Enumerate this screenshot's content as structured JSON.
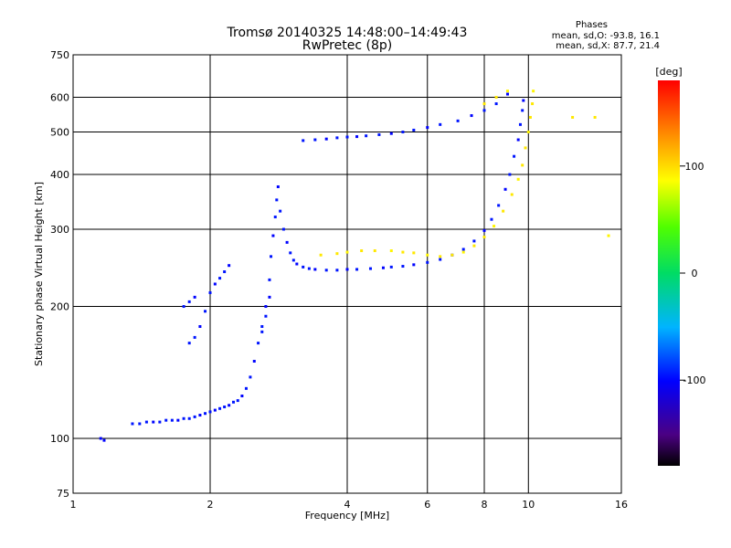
{
  "chart_data": {
    "type": "scatter",
    "title": "Tromsø 20140325 14:48:00–14:49:43",
    "subtitle": "RwPretec (8p)",
    "xlabel": "Frequency [MHz]",
    "ylabel": "Stationary phase Virtual Height [km]",
    "x_scale": "log2",
    "y_scale": "log",
    "xlim": [
      1,
      16
    ],
    "ylim": [
      75,
      750
    ],
    "x_ticks": [
      "1",
      "2",
      "4",
      "6",
      "8",
      "10",
      "16"
    ],
    "x_tick_values": [
      1,
      2,
      4,
      6,
      8,
      10,
      16
    ],
    "y_ticks": [
      "75",
      "100",
      "200",
      "300",
      "400",
      "500",
      "600",
      "750"
    ],
    "y_tick_values": [
      75,
      100,
      200,
      300,
      400,
      500,
      600,
      750
    ],
    "grid": true,
    "phase_stats": {
      "heading": "Phases",
      "o_line": "mean, sd,O: -93.8, 16.1",
      "x_line": "mean, sd,X:  87.7, 21.4"
    },
    "colorbar": {
      "label": "[deg]",
      "range": [
        -180,
        180
      ],
      "ticks": [
        "100",
        "0",
        "-100"
      ],
      "tick_values": [
        100,
        0,
        -100
      ],
      "colormap": "rainbow"
    },
    "series": [
      {
        "points": [
          [
            1.15,
            100,
            -100
          ],
          [
            1.17,
            99,
            -100
          ],
          [
            1.35,
            108,
            -95
          ],
          [
            1.4,
            108,
            -95
          ],
          [
            1.45,
            109,
            -95
          ],
          [
            1.5,
            109,
            -100
          ],
          [
            1.55,
            109,
            -95
          ],
          [
            1.6,
            110,
            -95
          ],
          [
            1.65,
            110,
            -95
          ],
          [
            1.7,
            110,
            -100
          ],
          [
            1.75,
            111,
            -95
          ],
          [
            1.8,
            111,
            -95
          ],
          [
            1.85,
            112,
            -95
          ],
          [
            1.9,
            113,
            -100
          ],
          [
            1.95,
            114,
            -95
          ],
          [
            2.0,
            115,
            -95
          ],
          [
            2.05,
            116,
            -100
          ],
          [
            2.1,
            117,
            -95
          ],
          [
            2.15,
            118,
            -95
          ],
          [
            2.2,
            119,
            -100
          ],
          [
            2.25,
            121,
            -95
          ],
          [
            2.3,
            122,
            -95
          ],
          [
            2.35,
            125,
            -100
          ],
          [
            2.4,
            130,
            -95
          ],
          [
            2.45,
            138,
            -95
          ],
          [
            2.5,
            150,
            -100
          ],
          [
            2.55,
            165,
            -95
          ],
          [
            2.6,
            180,
            -95
          ],
          [
            2.65,
            200,
            -100
          ],
          [
            2.7,
            230,
            -95
          ],
          [
            2.72,
            260,
            -95
          ],
          [
            2.75,
            290,
            -100
          ],
          [
            2.78,
            320,
            -95
          ],
          [
            2.8,
            350,
            -95
          ],
          [
            2.82,
            375,
            -100
          ],
          [
            2.85,
            330,
            -95
          ],
          [
            2.9,
            300,
            -95
          ],
          [
            2.95,
            280,
            -100
          ],
          [
            3.0,
            265,
            -95
          ],
          [
            3.05,
            255,
            -95
          ],
          [
            3.1,
            250,
            -100
          ],
          [
            3.2,
            246,
            -95
          ],
          [
            3.3,
            244,
            -95
          ],
          [
            3.4,
            243,
            -100
          ],
          [
            3.6,
            242,
            -95
          ],
          [
            3.8,
            242,
            -95
          ],
          [
            4.0,
            243,
            -100
          ],
          [
            4.2,
            243,
            -95
          ],
          [
            4.5,
            244,
            -95
          ],
          [
            4.8,
            245,
            -100
          ],
          [
            5.0,
            246,
            -95
          ],
          [
            5.3,
            247,
            -95
          ],
          [
            5.6,
            249,
            -100
          ],
          [
            6.0,
            252,
            -95
          ],
          [
            6.4,
            256,
            -95
          ],
          [
            6.8,
            262,
            -100
          ],
          [
            7.2,
            270,
            -95
          ],
          [
            7.6,
            282,
            -95
          ],
          [
            8.0,
            298,
            -100
          ],
          [
            8.3,
            316,
            -95
          ],
          [
            8.6,
            340,
            -95
          ],
          [
            8.9,
            370,
            -100
          ],
          [
            9.1,
            400,
            -95
          ],
          [
            9.3,
            440,
            -95
          ],
          [
            9.5,
            480,
            -100
          ],
          [
            9.6,
            520,
            -95
          ],
          [
            9.7,
            560,
            -95
          ],
          [
            9.75,
            590,
            -100
          ],
          [
            1.8,
            165,
            -95
          ],
          [
            1.85,
            170,
            -95
          ],
          [
            1.9,
            180,
            -100
          ],
          [
            1.95,
            195,
            -95
          ],
          [
            2.0,
            215,
            -95
          ],
          [
            2.05,
            225,
            -100
          ],
          [
            2.1,
            232,
            -95
          ],
          [
            2.15,
            240,
            -95
          ],
          [
            2.2,
            248,
            -100
          ],
          [
            1.75,
            200,
            -95
          ],
          [
            1.8,
            205,
            -95
          ],
          [
            1.85,
            210,
            -100
          ],
          [
            2.6,
            175,
            -95
          ],
          [
            2.65,
            190,
            -95
          ],
          [
            2.7,
            210,
            -100
          ],
          [
            3.2,
            478,
            -95
          ],
          [
            3.4,
            480,
            -95
          ],
          [
            3.6,
            482,
            -100
          ],
          [
            3.8,
            485,
            -95
          ],
          [
            4.0,
            487,
            -95
          ],
          [
            4.2,
            488,
            -100
          ],
          [
            4.4,
            490,
            -95
          ],
          [
            4.7,
            493,
            -95
          ],
          [
            5.0,
            496,
            -100
          ],
          [
            5.3,
            500,
            -95
          ],
          [
            5.6,
            505,
            -95
          ],
          [
            6.0,
            512,
            -100
          ],
          [
            6.4,
            520,
            -95
          ],
          [
            7.0,
            530,
            -95
          ],
          [
            7.5,
            545,
            -100
          ],
          [
            8.0,
            560,
            -95
          ],
          [
            8.5,
            580,
            -95
          ],
          [
            9.0,
            610,
            -100
          ]
        ]
      },
      {
        "points": [
          [
            3.5,
            262,
            95
          ],
          [
            3.8,
            264,
            95
          ],
          [
            4.0,
            266,
            90
          ],
          [
            4.3,
            268,
            95
          ],
          [
            4.6,
            268,
            95
          ],
          [
            5.0,
            268,
            90
          ],
          [
            5.3,
            266,
            95
          ],
          [
            5.6,
            265,
            95
          ],
          [
            6.0,
            262,
            90
          ],
          [
            6.4,
            260,
            95
          ],
          [
            6.8,
            262,
            95
          ],
          [
            7.2,
            266,
            90
          ],
          [
            7.6,
            275,
            95
          ],
          [
            8.0,
            288,
            95
          ],
          [
            8.4,
            305,
            90
          ],
          [
            8.8,
            330,
            95
          ],
          [
            9.2,
            360,
            95
          ],
          [
            9.5,
            390,
            90
          ],
          [
            9.7,
            420,
            95
          ],
          [
            9.85,
            460,
            95
          ],
          [
            10.0,
            500,
            90
          ],
          [
            10.1,
            540,
            95
          ],
          [
            10.2,
            580,
            95
          ],
          [
            10.25,
            620,
            90
          ],
          [
            8.0,
            580,
            95
          ],
          [
            8.5,
            600,
            95
          ],
          [
            9.0,
            620,
            90
          ],
          [
            12.5,
            540,
            95
          ],
          [
            14.0,
            540,
            95
          ],
          [
            15.0,
            290,
            90
          ]
        ]
      }
    ]
  }
}
